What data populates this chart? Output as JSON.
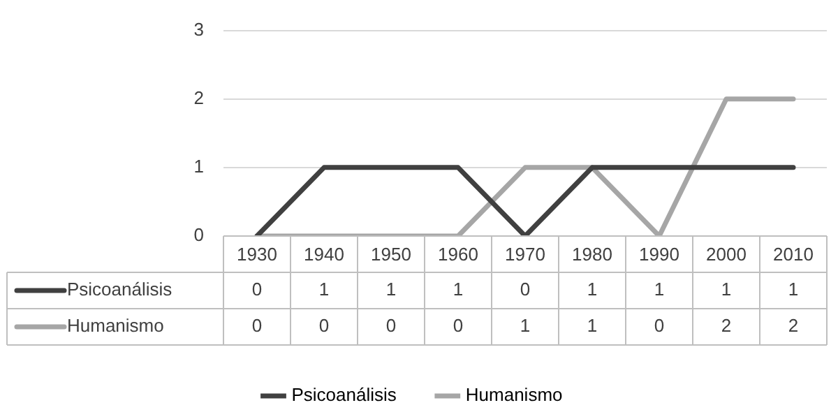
{
  "chart_data": {
    "type": "line",
    "categories": [
      "1930",
      "1940",
      "1950",
      "1960",
      "1970",
      "1980",
      "1990",
      "2000",
      "2010"
    ],
    "series": [
      {
        "name": "Psicoanálisis",
        "color": "#404040",
        "values": [
          0,
          1,
          1,
          1,
          0,
          1,
          1,
          1,
          1
        ]
      },
      {
        "name": "Humanismo",
        "color": "#a6a6a6",
        "values": [
          0,
          0,
          0,
          0,
          1,
          1,
          0,
          2,
          2
        ]
      }
    ],
    "ylim": [
      0,
      3
    ],
    "yticks": [
      0,
      1,
      2,
      3
    ],
    "grid": "y",
    "legend": "bottom",
    "data_labels": true,
    "marker": "none",
    "line_style": "solid"
  }
}
